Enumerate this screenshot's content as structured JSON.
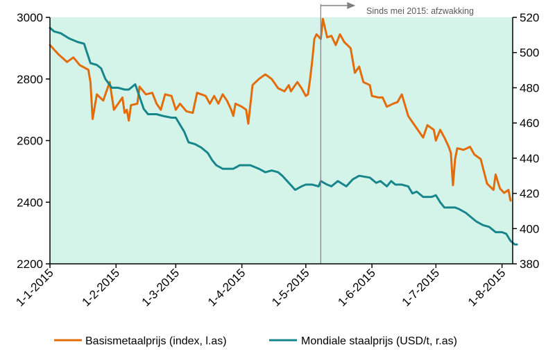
{
  "chart_data": {
    "type": "line",
    "title": "",
    "annotation": "Sinds mei 2015: afzwakking",
    "annotation_line_date": "2015-05-08",
    "background_color": "#d4f4ea",
    "x_ticks": [
      "1-1-2015",
      "1-2-2015",
      "1-3-2015",
      "1-4-2015",
      "1-5-2015",
      "1-6-2015",
      "1-7-2015",
      "1-8-2015"
    ],
    "y_left": {
      "min": 2200,
      "max": 3000,
      "ticks": [
        2200,
        2400,
        2600,
        2800,
        3000
      ]
    },
    "y_right": {
      "min": 380,
      "max": 520,
      "ticks": [
        380,
        400,
        420,
        440,
        460,
        480,
        500,
        520
      ]
    },
    "series": [
      {
        "name": "Basismetaalprijs (index, l.as)",
        "axis": "left",
        "color": "#e36c0a",
        "points": [
          [
            "2015-01-01",
            2910
          ],
          [
            "2015-01-05",
            2880
          ],
          [
            "2015-01-09",
            2855
          ],
          [
            "2015-01-12",
            2870
          ],
          [
            "2015-01-15",
            2845
          ],
          [
            "2015-01-19",
            2830
          ],
          [
            "2015-01-20",
            2790
          ],
          [
            "2015-01-21",
            2670
          ],
          [
            "2015-01-23",
            2750
          ],
          [
            "2015-01-26",
            2730
          ],
          [
            "2015-01-29",
            2790
          ],
          [
            "2015-01-31",
            2700
          ],
          [
            "2015-02-02",
            2720
          ],
          [
            "2015-02-04",
            2740
          ],
          [
            "2015-02-05",
            2690
          ],
          [
            "2015-02-06",
            2700
          ],
          [
            "2015-02-07",
            2665
          ],
          [
            "2015-02-08",
            2715
          ],
          [
            "2015-02-11",
            2720
          ],
          [
            "2015-02-12",
            2775
          ],
          [
            "2015-02-15",
            2750
          ],
          [
            "2015-02-18",
            2755
          ],
          [
            "2015-02-20",
            2720
          ],
          [
            "2015-02-22",
            2700
          ],
          [
            "2015-02-24",
            2750
          ],
          [
            "2015-02-27",
            2745
          ],
          [
            "2015-03-01",
            2700
          ],
          [
            "2015-03-03",
            2720
          ],
          [
            "2015-03-06",
            2695
          ],
          [
            "2015-03-09",
            2690
          ],
          [
            "2015-03-11",
            2755
          ],
          [
            "2015-03-15",
            2745
          ],
          [
            "2015-03-17",
            2720
          ],
          [
            "2015-03-19",
            2745
          ],
          [
            "2015-03-21",
            2720
          ],
          [
            "2015-03-23",
            2750
          ],
          [
            "2015-03-25",
            2730
          ],
          [
            "2015-03-27",
            2700
          ],
          [
            "2015-03-28",
            2680
          ],
          [
            "2015-03-29",
            2720
          ],
          [
            "2015-04-01",
            2710
          ],
          [
            "2015-04-03",
            2700
          ],
          [
            "2015-04-04",
            2655
          ],
          [
            "2015-04-06",
            2780
          ],
          [
            "2015-04-09",
            2800
          ],
          [
            "2015-04-12",
            2815
          ],
          [
            "2015-04-15",
            2800
          ],
          [
            "2015-04-18",
            2770
          ],
          [
            "2015-04-21",
            2760
          ],
          [
            "2015-04-23",
            2780
          ],
          [
            "2015-04-24",
            2760
          ],
          [
            "2015-04-27",
            2790
          ],
          [
            "2015-04-29",
            2770
          ],
          [
            "2015-05-01",
            2745
          ],
          [
            "2015-05-02",
            2750
          ],
          [
            "2015-05-03",
            2800
          ],
          [
            "2015-05-04",
            2860
          ],
          [
            "2015-05-05",
            2930
          ],
          [
            "2015-05-06",
            2945
          ],
          [
            "2015-05-08",
            2930
          ],
          [
            "2015-05-09",
            2995
          ],
          [
            "2015-05-11",
            2935
          ],
          [
            "2015-05-13",
            2940
          ],
          [
            "2015-05-15",
            2910
          ],
          [
            "2015-05-17",
            2945
          ],
          [
            "2015-05-19",
            2920
          ],
          [
            "2015-05-22",
            2900
          ],
          [
            "2015-05-24",
            2820
          ],
          [
            "2015-05-26",
            2840
          ],
          [
            "2015-05-28",
            2790
          ],
          [
            "2015-05-31",
            2780
          ],
          [
            "2015-06-01",
            2745
          ],
          [
            "2015-06-04",
            2740
          ],
          [
            "2015-06-06",
            2740
          ],
          [
            "2015-06-08",
            2710
          ],
          [
            "2015-06-11",
            2720
          ],
          [
            "2015-06-13",
            2725
          ],
          [
            "2015-06-15",
            2750
          ],
          [
            "2015-06-18",
            2680
          ],
          [
            "2015-06-20",
            2660
          ],
          [
            "2015-06-22",
            2640
          ],
          [
            "2015-06-25",
            2610
          ],
          [
            "2015-06-27",
            2650
          ],
          [
            "2015-06-30",
            2635
          ],
          [
            "2015-07-01",
            2600
          ],
          [
            "2015-07-03",
            2635
          ],
          [
            "2015-07-05",
            2610
          ],
          [
            "2015-07-07",
            2580
          ],
          [
            "2015-07-08",
            2560
          ],
          [
            "2015-07-09",
            2455
          ],
          [
            "2015-07-10",
            2540
          ],
          [
            "2015-07-11",
            2575
          ],
          [
            "2015-07-14",
            2570
          ],
          [
            "2015-07-17",
            2580
          ],
          [
            "2015-07-19",
            2555
          ],
          [
            "2015-07-22",
            2540
          ],
          [
            "2015-07-25",
            2460
          ],
          [
            "2015-07-28",
            2440
          ],
          [
            "2015-07-29",
            2490
          ],
          [
            "2015-07-31",
            2445
          ],
          [
            "2015-08-02",
            2430
          ],
          [
            "2015-08-04",
            2440
          ],
          [
            "2015-08-05",
            2405
          ]
        ]
      },
      {
        "name": "Mondiale staalprijs (USD/t, r.as)",
        "axis": "right",
        "color": "#17868a",
        "points": [
          [
            "2015-01-01",
            514
          ],
          [
            "2015-01-03",
            512
          ],
          [
            "2015-01-06",
            511
          ],
          [
            "2015-01-10",
            508
          ],
          [
            "2015-01-14",
            506
          ],
          [
            "2015-01-17",
            505
          ],
          [
            "2015-01-20",
            494
          ],
          [
            "2015-01-23",
            493
          ],
          [
            "2015-01-25",
            491
          ],
          [
            "2015-01-27",
            485
          ],
          [
            "2015-01-30",
            480
          ],
          [
            "2015-02-02",
            480
          ],
          [
            "2015-02-05",
            479
          ],
          [
            "2015-02-07",
            479
          ],
          [
            "2015-02-10",
            482
          ],
          [
            "2015-02-12",
            475
          ],
          [
            "2015-02-14",
            468
          ],
          [
            "2015-02-16",
            465
          ],
          [
            "2015-02-20",
            465
          ],
          [
            "2015-02-23",
            464
          ],
          [
            "2015-02-27",
            463
          ],
          [
            "2015-03-01",
            463
          ],
          [
            "2015-03-03",
            459
          ],
          [
            "2015-03-05",
            455
          ],
          [
            "2015-03-07",
            449
          ],
          [
            "2015-03-10",
            448
          ],
          [
            "2015-03-13",
            446
          ],
          [
            "2015-03-16",
            443
          ],
          [
            "2015-03-18",
            439
          ],
          [
            "2015-03-20",
            436
          ],
          [
            "2015-03-23",
            434
          ],
          [
            "2015-03-28",
            434
          ],
          [
            "2015-03-31",
            436
          ],
          [
            "2015-04-05",
            436
          ],
          [
            "2015-04-09",
            434
          ],
          [
            "2015-04-12",
            432
          ],
          [
            "2015-04-15",
            433
          ],
          [
            "2015-04-18",
            432
          ],
          [
            "2015-04-20",
            430
          ],
          [
            "2015-04-23",
            426
          ],
          [
            "2015-04-26",
            422
          ],
          [
            "2015-04-29",
            424
          ],
          [
            "2015-05-01",
            425
          ],
          [
            "2015-05-04",
            425
          ],
          [
            "2015-05-07",
            424
          ],
          [
            "2015-05-08",
            427
          ],
          [
            "2015-05-11",
            425
          ],
          [
            "2015-05-13",
            424
          ],
          [
            "2015-05-16",
            427
          ],
          [
            "2015-05-20",
            424
          ],
          [
            "2015-05-23",
            428
          ],
          [
            "2015-05-26",
            430
          ],
          [
            "2015-05-31",
            429
          ],
          [
            "2015-06-03",
            426
          ],
          [
            "2015-06-05",
            427
          ],
          [
            "2015-06-08",
            424
          ],
          [
            "2015-06-10",
            427
          ],
          [
            "2015-06-12",
            425
          ],
          [
            "2015-06-15",
            425
          ],
          [
            "2015-06-18",
            424
          ],
          [
            "2015-06-20",
            420
          ],
          [
            "2015-06-22",
            421
          ],
          [
            "2015-06-25",
            418
          ],
          [
            "2015-06-29",
            418
          ],
          [
            "2015-07-01",
            419
          ],
          [
            "2015-07-03",
            415
          ],
          [
            "2015-07-05",
            412
          ],
          [
            "2015-07-10",
            412
          ],
          [
            "2015-07-12",
            411
          ],
          [
            "2015-07-15",
            409
          ],
          [
            "2015-07-18",
            406
          ],
          [
            "2015-07-20",
            404
          ],
          [
            "2015-07-23",
            402
          ],
          [
            "2015-07-26",
            401
          ],
          [
            "2015-07-29",
            398
          ],
          [
            "2015-08-01",
            398
          ],
          [
            "2015-08-03",
            397
          ],
          [
            "2015-08-05",
            393
          ],
          [
            "2015-08-07",
            391
          ],
          [
            "2015-08-08",
            391
          ]
        ]
      }
    ],
    "legend_position": "bottom"
  }
}
